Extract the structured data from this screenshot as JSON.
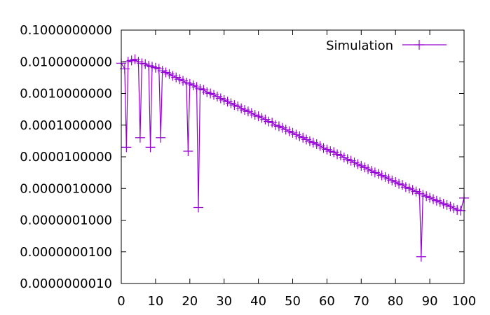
{
  "chart_data": {
    "type": "line",
    "title": "",
    "xlabel": "",
    "ylabel": "",
    "y_scale": "log",
    "xlim": [
      0,
      100
    ],
    "ylim": [
      1e-09,
      0.1
    ],
    "grid": false,
    "legend_position": "top-right",
    "x_ticks": [
      "0",
      "10",
      "20",
      "30",
      "40",
      "50",
      "60",
      "70",
      "80",
      "90",
      "100"
    ],
    "x_tick_values": [
      0,
      10,
      20,
      30,
      40,
      50,
      60,
      70,
      80,
      90,
      100
    ],
    "y_ticks": [
      "0.1000000000",
      "0.0100000000",
      "0.0010000000",
      "0.0001000000",
      "0.0000100000",
      "0.0000010000",
      "0.0000001000",
      "0.0000000100",
      "0.0000000010"
    ],
    "y_tick_values": [
      0.1,
      0.01,
      0.001,
      0.0001,
      1e-05,
      1e-06,
      1e-07,
      1e-08,
      1e-09
    ],
    "series": [
      {
        "name": "Simulation",
        "color": "#9400d3",
        "marker": "plus",
        "x": [
          0,
          1,
          1.5,
          2,
          3,
          4,
          5,
          5.5,
          6,
          7,
          8,
          8.5,
          9,
          10,
          11,
          11.5,
          12,
          13,
          14,
          15,
          16,
          17,
          18,
          19,
          19.5,
          20,
          21,
          22,
          22.5,
          23,
          24,
          25,
          26,
          27,
          28,
          29,
          30,
          31,
          32,
          33,
          34,
          35,
          36,
          37,
          38,
          39,
          40,
          41,
          42,
          43,
          44,
          45,
          46,
          47,
          48,
          49,
          50,
          51,
          52,
          53,
          54,
          55,
          56,
          57,
          58,
          59,
          60,
          61,
          62,
          63,
          64,
          65,
          66,
          67,
          68,
          69,
          70,
          71,
          72,
          73,
          74,
          75,
          76,
          77,
          78,
          79,
          80,
          81,
          82,
          83,
          84,
          85,
          86,
          87,
          87.5,
          88,
          89,
          90,
          91,
          92,
          93,
          94,
          95,
          96,
          97,
          98,
          99,
          100
        ],
        "y": [
          0.009,
          0.006,
          2e-05,
          0.01,
          0.011,
          0.012,
          0.01,
          4e-05,
          0.009,
          0.0085,
          0.0075,
          2e-05,
          0.007,
          0.0065,
          0.006,
          4e-05,
          0.0052,
          0.0046,
          0.0041,
          0.0036,
          0.0032,
          0.0028,
          0.0025,
          0.0022,
          1.5e-05,
          0.002,
          0.0018,
          0.0016,
          2.5e-07,
          0.0014,
          0.0013,
          0.0011,
          0.001,
          0.0009,
          0.0008,
          0.0007,
          0.00062,
          0.00055,
          0.00049,
          0.00043,
          0.00039,
          0.00034,
          0.0003,
          0.00027,
          0.00024,
          0.00021,
          0.00019,
          0.00017,
          0.00015,
          0.00013,
          0.00012,
          0.0001,
          9.2e-05,
          8.2e-05,
          7.2e-05,
          6.4e-05,
          5.7e-05,
          5e-05,
          4.5e-05,
          4e-05,
          3.5e-05,
          3.1e-05,
          2.8e-05,
          2.5e-05,
          2.2e-05,
          1.9e-05,
          1.7e-05,
          1.5e-05,
          1.4e-05,
          1.2e-05,
          1.1e-05,
          9.5e-06,
          8.4e-06,
          7.5e-06,
          6.6e-06,
          5.9e-06,
          5.2e-06,
          4.6e-06,
          4.1e-06,
          3.6e-06,
          3.2e-06,
          2.9e-06,
          2.6e-06,
          2.3e-06,
          2e-06,
          1.8e-06,
          1.6e-06,
          1.4e-06,
          1.3e-06,
          1.1e-06,
          1e-06,
          9e-07,
          8e-07,
          7e-07,
          7e-09,
          6.3e-07,
          5.7e-07,
          5.1e-07,
          4.6e-07,
          4.1e-07,
          3.7e-07,
          3.3e-07,
          3e-07,
          2.7e-07,
          2.4e-07,
          2.1e-07,
          2e-07,
          5e-07
        ]
      }
    ]
  }
}
